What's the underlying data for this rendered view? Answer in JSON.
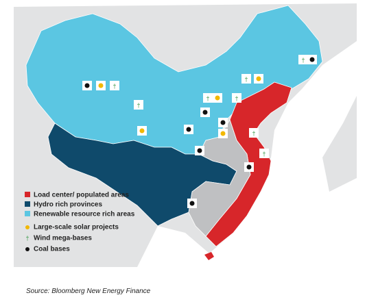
{
  "legend": [
    {
      "label": "Load center/ populated areas",
      "color": "#d7262a"
    },
    {
      "label": "Hydro rich provinces",
      "color": "#0f4a6b"
    },
    {
      "label": "Renewable resource rich areas",
      "color": "#5bc6e2"
    },
    {
      "label": "Large-scale solar projects"
    },
    {
      "label": "Wind mega-bases"
    },
    {
      "label": "Coal bases"
    }
  ],
  "source": "Source: Bloomberg New Energy Finance"
}
